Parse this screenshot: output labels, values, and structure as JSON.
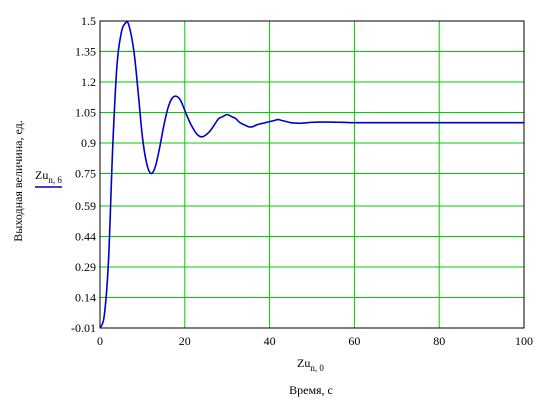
{
  "chart_data": {
    "type": "line",
    "ylabel": "Выходная величина, ед.",
    "xlabel": "Время, с",
    "x_var": {
      "base": "Zu",
      "sub": "n, 0"
    },
    "legend": {
      "base": "Zu",
      "sub": "n, 6",
      "placement": "left"
    },
    "xlim": [
      0,
      100
    ],
    "ylim": [
      -0.01,
      1.5
    ],
    "xticks": [
      "0",
      "20",
      "40",
      "60",
      "80",
      "100"
    ],
    "yticks": [
      "-0.01",
      "0.14",
      "0.29",
      "0.44",
      "0.59",
      "0.75",
      "0.9",
      "1.05",
      "1.2",
      "1.35",
      "1.5"
    ],
    "grid": true,
    "colors": {
      "line": "#0000cc",
      "grid": "#00cc00"
    },
    "series": [
      {
        "x": [
          0,
          1,
          2,
          3,
          4,
          5,
          6,
          6.8,
          8,
          9,
          10,
          11,
          12,
          13,
          14,
          15,
          16,
          17,
          18,
          19,
          20,
          21,
          22,
          23,
          24,
          25,
          26,
          27,
          28,
          29,
          30,
          31,
          32,
          33,
          34,
          35,
          36,
          37,
          38,
          39,
          40,
          41,
          42,
          43,
          44,
          45,
          46,
          47,
          48,
          49,
          50,
          52,
          54,
          56,
          58,
          60,
          65,
          70,
          80,
          90,
          100
        ],
        "values": [
          -0.01,
          0.05,
          0.32,
          0.88,
          1.28,
          1.44,
          1.49,
          1.48,
          1.35,
          1.15,
          0.93,
          0.8,
          0.75,
          0.78,
          0.87,
          0.98,
          1.07,
          1.12,
          1.13,
          1.11,
          1.06,
          1.01,
          0.97,
          0.94,
          0.93,
          0.94,
          0.96,
          0.99,
          1.02,
          1.03,
          1.04,
          1.03,
          1.02,
          1.0,
          0.99,
          0.98,
          0.98,
          0.99,
          0.995,
          1.0,
          1.005,
          1.01,
          1.015,
          1.01,
          1.005,
          1.0,
          0.998,
          0.997,
          0.998,
          1.0,
          1.002,
          1.003,
          1.003,
          1.002,
          1.001,
          1.0,
          1.0,
          1.0,
          1.0,
          1.0,
          1.0
        ]
      }
    ]
  }
}
